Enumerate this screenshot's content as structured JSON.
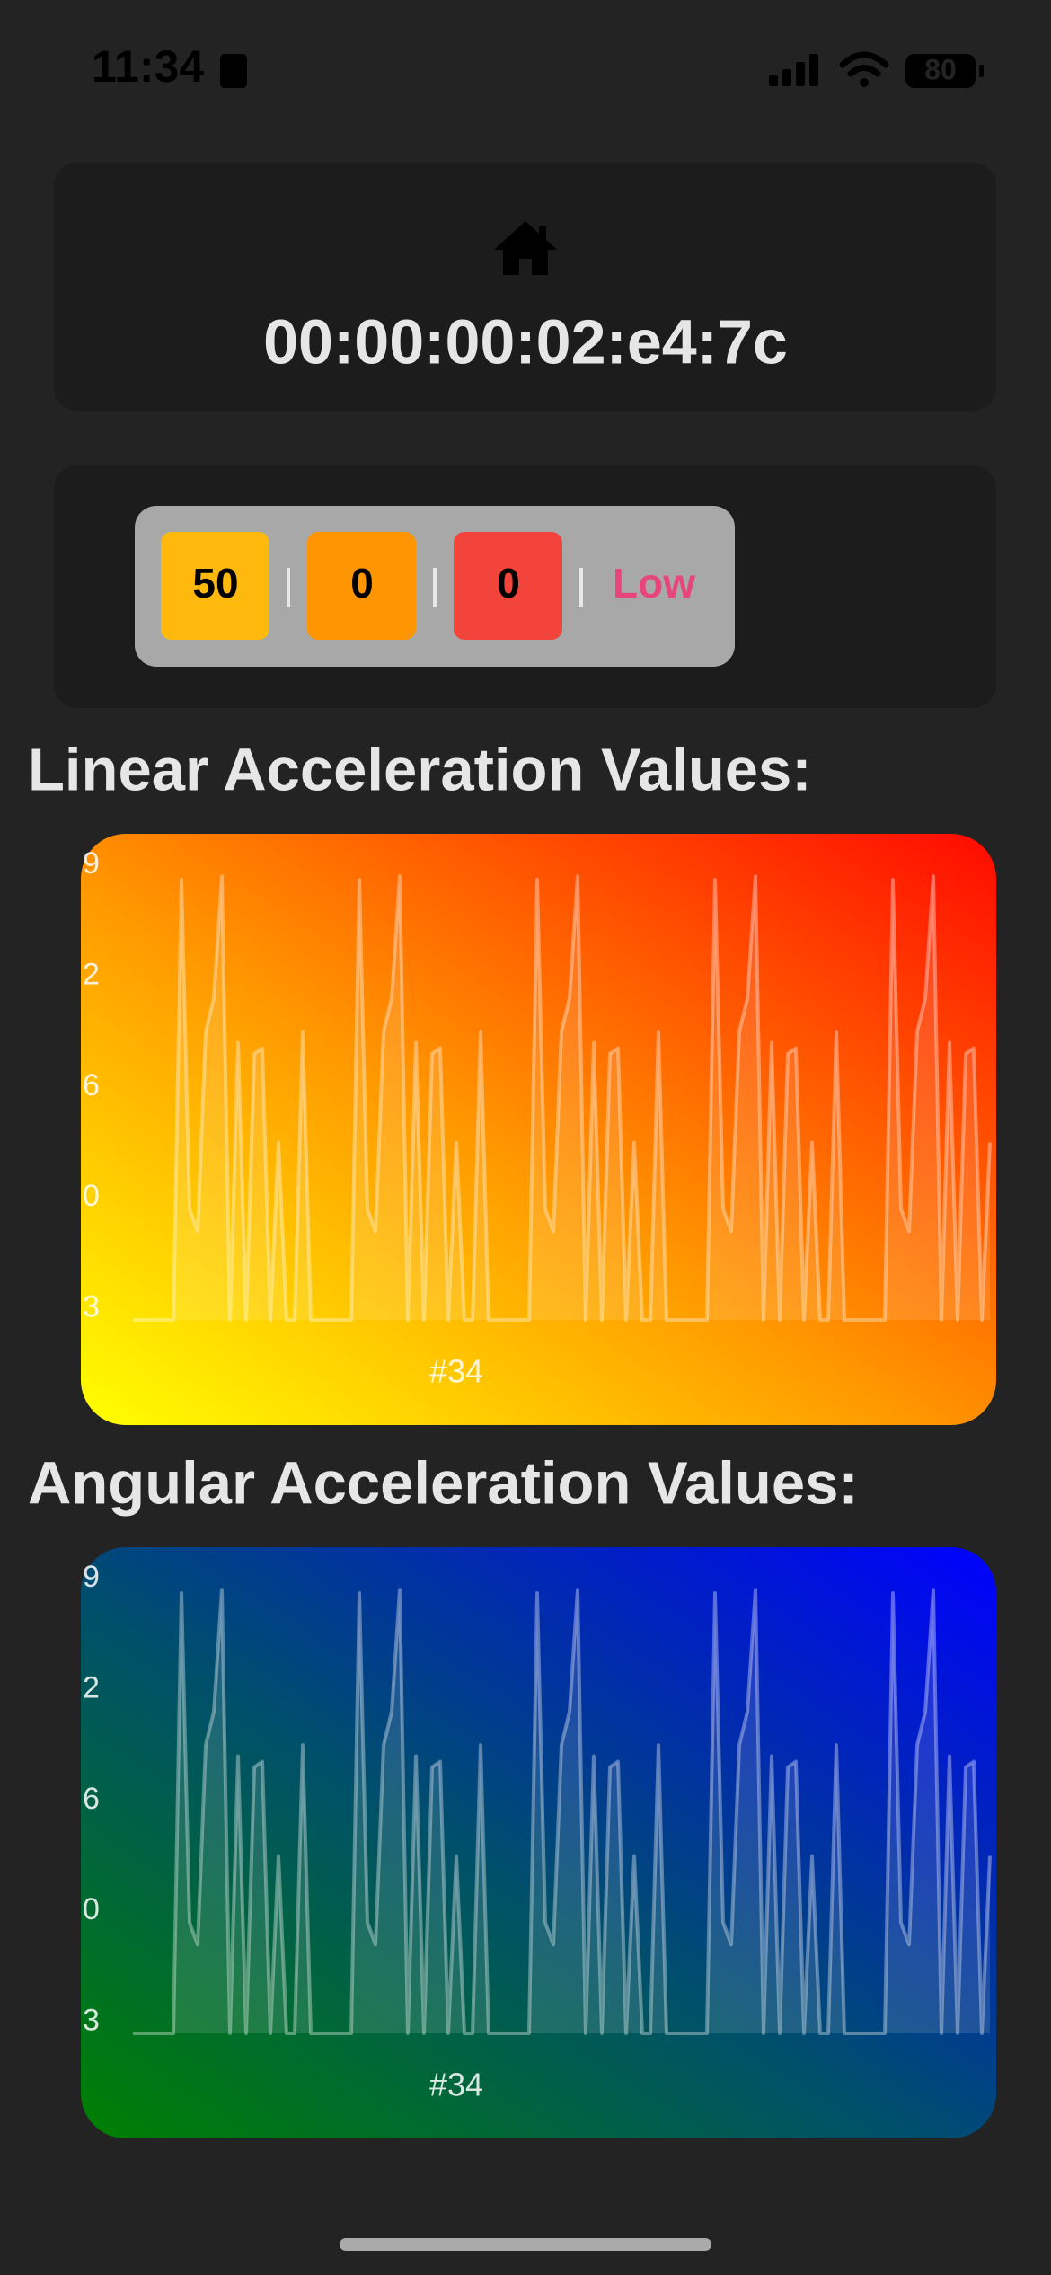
{
  "status_bar": {
    "time": "11:34",
    "battery": "80"
  },
  "device": {
    "address": "00:00:00:02:e4:7c"
  },
  "badges": [
    "50",
    "0",
    "0",
    "Low"
  ],
  "chart_data": [
    {
      "type": "line",
      "title": "Linear Acceleration Values:",
      "x_label": "#34",
      "ylim": [
        -0.1,
        4
      ],
      "yticks": [
        {
          "value": 4,
          "label": "9"
        },
        {
          "value": 3,
          "label": "2"
        },
        {
          "value": 2,
          "label": "6"
        },
        {
          "value": 1,
          "label": "0"
        },
        {
          "value": 0,
          "label": "3"
        }
      ],
      "series": [
        {
          "color": "#ffffff",
          "values": [
            -0.1,
            -0.1,
            -0.1,
            -0.1,
            -0.1,
            -0.1,
            3.87,
            0.9,
            0.7,
            2.5,
            2.8,
            3.9,
            -0.1,
            2.4,
            -0.1,
            2.3,
            2.35,
            -0.1,
            1.5,
            -0.1,
            -0.1,
            2.5,
            -0.1,
            -0.1,
            -0.1,
            -0.1,
            -0.1,
            -0.1,
            3.87,
            0.9,
            0.7,
            2.5,
            2.8,
            3.9,
            -0.1,
            2.4,
            -0.1,
            2.3,
            2.35,
            -0.1,
            1.5,
            -0.1,
            -0.1,
            2.5,
            -0.1,
            -0.1,
            -0.1,
            -0.1,
            -0.1,
            -0.1,
            3.87,
            0.9,
            0.7,
            2.5,
            2.8,
            3.9,
            -0.1,
            2.4,
            -0.1,
            2.3,
            2.35,
            -0.1,
            1.5,
            -0.1,
            -0.1,
            2.5,
            -0.1,
            -0.1,
            -0.1,
            -0.1,
            -0.1,
            -0.1,
            3.87,
            0.9,
            0.7,
            2.5,
            2.8,
            3.9,
            -0.1,
            2.4,
            -0.1,
            2.3,
            2.35,
            -0.1,
            1.5,
            -0.1,
            -0.1,
            2.5,
            -0.1,
            -0.1,
            -0.1,
            -0.1,
            -0.1,
            -0.1,
            3.87,
            0.9,
            0.7,
            2.5,
            2.8,
            3.9,
            -0.1,
            2.4,
            -0.1,
            2.3,
            2.35,
            -0.1,
            1.5
          ]
        }
      ]
    },
    {
      "type": "line",
      "title": "Angular Acceleration Values:",
      "x_label": "#34",
      "ylim": [
        -0.1,
        4
      ],
      "yticks": [
        {
          "value": 4,
          "label": "9"
        },
        {
          "value": 3,
          "label": "2"
        },
        {
          "value": 2,
          "label": "6"
        },
        {
          "value": 1,
          "label": "0"
        },
        {
          "value": 0,
          "label": "3"
        }
      ],
      "series": [
        {
          "color": "#ffffff",
          "values": [
            -0.1,
            -0.1,
            -0.1,
            -0.1,
            -0.1,
            -0.1,
            3.87,
            0.9,
            0.7,
            2.5,
            2.8,
            3.9,
            -0.1,
            2.4,
            -0.1,
            2.3,
            2.35,
            -0.1,
            1.5,
            -0.1,
            -0.1,
            2.5,
            -0.1,
            -0.1,
            -0.1,
            -0.1,
            -0.1,
            -0.1,
            3.87,
            0.9,
            0.7,
            2.5,
            2.8,
            3.9,
            -0.1,
            2.4,
            -0.1,
            2.3,
            2.35,
            -0.1,
            1.5,
            -0.1,
            -0.1,
            2.5,
            -0.1,
            -0.1,
            -0.1,
            -0.1,
            -0.1,
            -0.1,
            3.87,
            0.9,
            0.7,
            2.5,
            2.8,
            3.9,
            -0.1,
            2.4,
            -0.1,
            2.3,
            2.35,
            -0.1,
            1.5,
            -0.1,
            -0.1,
            2.5,
            -0.1,
            -0.1,
            -0.1,
            -0.1,
            -0.1,
            -0.1,
            3.87,
            0.9,
            0.7,
            2.5,
            2.8,
            3.9,
            -0.1,
            2.4,
            -0.1,
            2.3,
            2.35,
            -0.1,
            1.5,
            -0.1,
            -0.1,
            2.5,
            -0.1,
            -0.1,
            -0.1,
            -0.1,
            -0.1,
            -0.1,
            3.87,
            0.9,
            0.7,
            2.5,
            2.8,
            3.9,
            -0.1,
            2.4,
            -0.1,
            2.3,
            2.35,
            -0.1,
            1.5
          ]
        }
      ]
    }
  ]
}
